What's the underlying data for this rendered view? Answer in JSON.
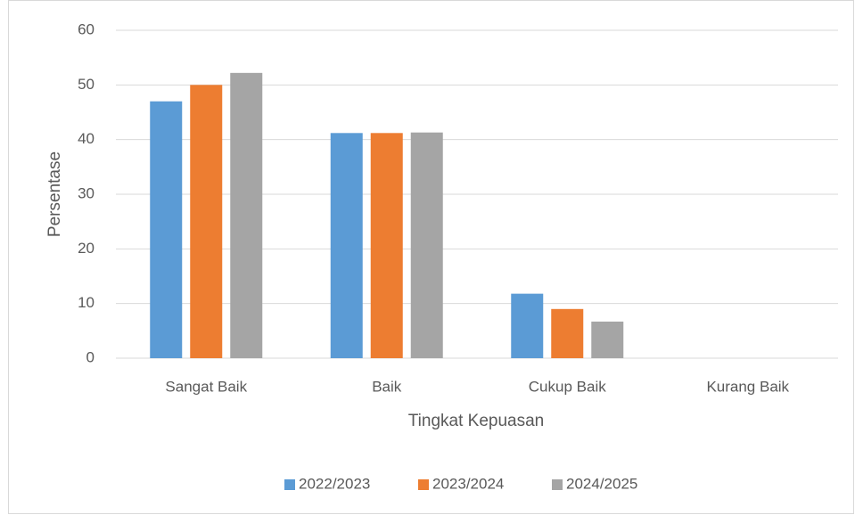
{
  "chart_data": {
    "type": "bar",
    "x_label": "Tingkat Kepuasan",
    "y_label": "Persentase",
    "categories": [
      "Sangat Baik",
      "Baik",
      "Cukup Baik",
      "Kurang Baik"
    ],
    "series": [
      {
        "name": "2022/2023",
        "color": "#5b9bd5",
        "values": [
          47,
          41.2,
          11.8,
          0
        ]
      },
      {
        "name": "2023/2024",
        "color": "#ed7d31",
        "values": [
          50,
          41.2,
          9,
          0
        ]
      },
      {
        "name": "2024/2025",
        "color": "#a5a5a5",
        "values": [
          52.2,
          41.3,
          6.7,
          0
        ]
      }
    ],
    "ylim": [
      0,
      60
    ],
    "yticks": [
      0,
      10,
      20,
      30,
      40,
      50,
      60
    ],
    "grid": true,
    "legend": "bottom"
  }
}
